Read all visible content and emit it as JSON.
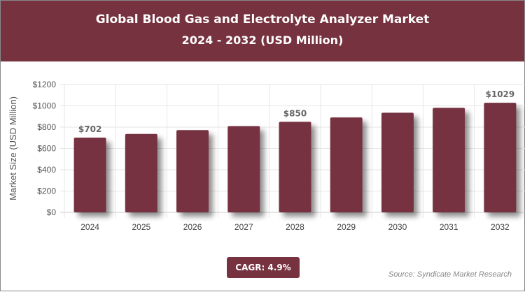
{
  "header": {
    "title": "Global Blood Gas and Electrolyte Analyzer Market",
    "subtitle": "2024 - 2032 (USD Million)"
  },
  "cagr": "CAGR: 4.9%",
  "source": "Source: Syndicate Market Research",
  "colors": {
    "brand": "#76323f",
    "bar": "#76323f"
  },
  "chart_data": {
    "type": "bar",
    "title": "Global Blood Gas and Electrolyte Analyzer Market",
    "subtitle": "2024 - 2032 (USD Million)",
    "xlabel": "",
    "ylabel": "Market Size (USD Million)",
    "ylim": [
      0,
      1200
    ],
    "yticks": [
      "$0",
      "$200",
      "$400",
      "$600",
      "$800",
      "$1000",
      "$1200"
    ],
    "categories": [
      "2024",
      "2025",
      "2026",
      "2027",
      "2028",
      "2029",
      "2030",
      "2031",
      "2032"
    ],
    "values": [
      702,
      736,
      772,
      810,
      850,
      891,
      935,
      981,
      1029
    ],
    "data_labels": {
      "0": "$702",
      "4": "$850",
      "8": "$1029"
    },
    "grid": true,
    "legend": "none"
  }
}
